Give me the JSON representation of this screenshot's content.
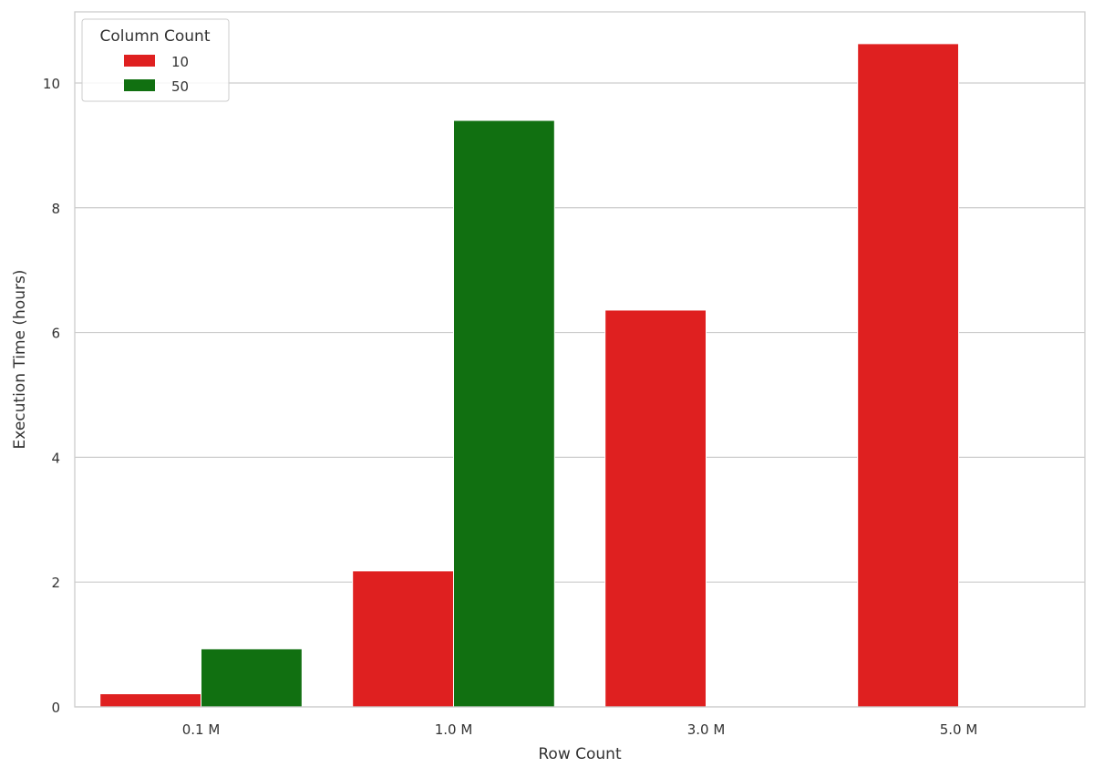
{
  "chart_data": {
    "type": "bar",
    "title": "",
    "xlabel": "Row Count",
    "ylabel": "Execution Time (hours)",
    "categories": [
      "0.1 M",
      "1.0 M",
      "3.0 M",
      "5.0 M"
    ],
    "ylim": [
      0,
      11.14
    ],
    "yticks": [
      0,
      2,
      4,
      6,
      8,
      10
    ],
    "grid": "horizontal",
    "legend": {
      "title": "Column Count",
      "placement": "top-left"
    },
    "series": [
      {
        "name": "10",
        "color": "#df2020",
        "values": [
          0.21,
          2.18,
          6.36,
          10.63
        ]
      },
      {
        "name": "50",
        "color": "#117011",
        "values": [
          0.93,
          9.4,
          null,
          null
        ]
      }
    ]
  }
}
